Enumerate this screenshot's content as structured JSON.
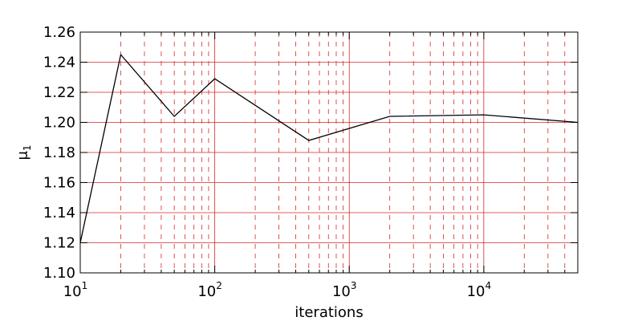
{
  "chart_data": {
    "type": "line",
    "title": "",
    "xlabel": "iterations",
    "ylabel": "μ",
    "ylabel_subscript": "1",
    "xscale": "log",
    "xlim": [
      10,
      50000
    ],
    "ylim": [
      1.1,
      1.26
    ],
    "grid": true,
    "colors": {
      "line": "#000000",
      "grid": "#d62728",
      "axes": "#000000"
    },
    "x_tick_labels": [
      {
        "base": "10",
        "exp": "1",
        "value": 10
      },
      {
        "base": "10",
        "exp": "2",
        "value": 100
      },
      {
        "base": "10",
        "exp": "3",
        "value": 1000
      },
      {
        "base": "10",
        "exp": "4",
        "value": 10000
      }
    ],
    "y_ticks": [
      1.1,
      1.12,
      1.14,
      1.16,
      1.18,
      1.2,
      1.22,
      1.24,
      1.26
    ],
    "y_tick_labels": [
      "1.10",
      "1.12",
      "1.14",
      "1.16",
      "1.18",
      "1.20",
      "1.22",
      "1.24",
      "1.26"
    ],
    "series": [
      {
        "x": [
          10,
          20,
          50,
          100,
          500,
          2000,
          10000,
          50000
        ],
        "y": [
          1.12,
          1.245,
          1.204,
          1.229,
          1.188,
          1.204,
          1.205,
          1.2
        ]
      }
    ]
  }
}
